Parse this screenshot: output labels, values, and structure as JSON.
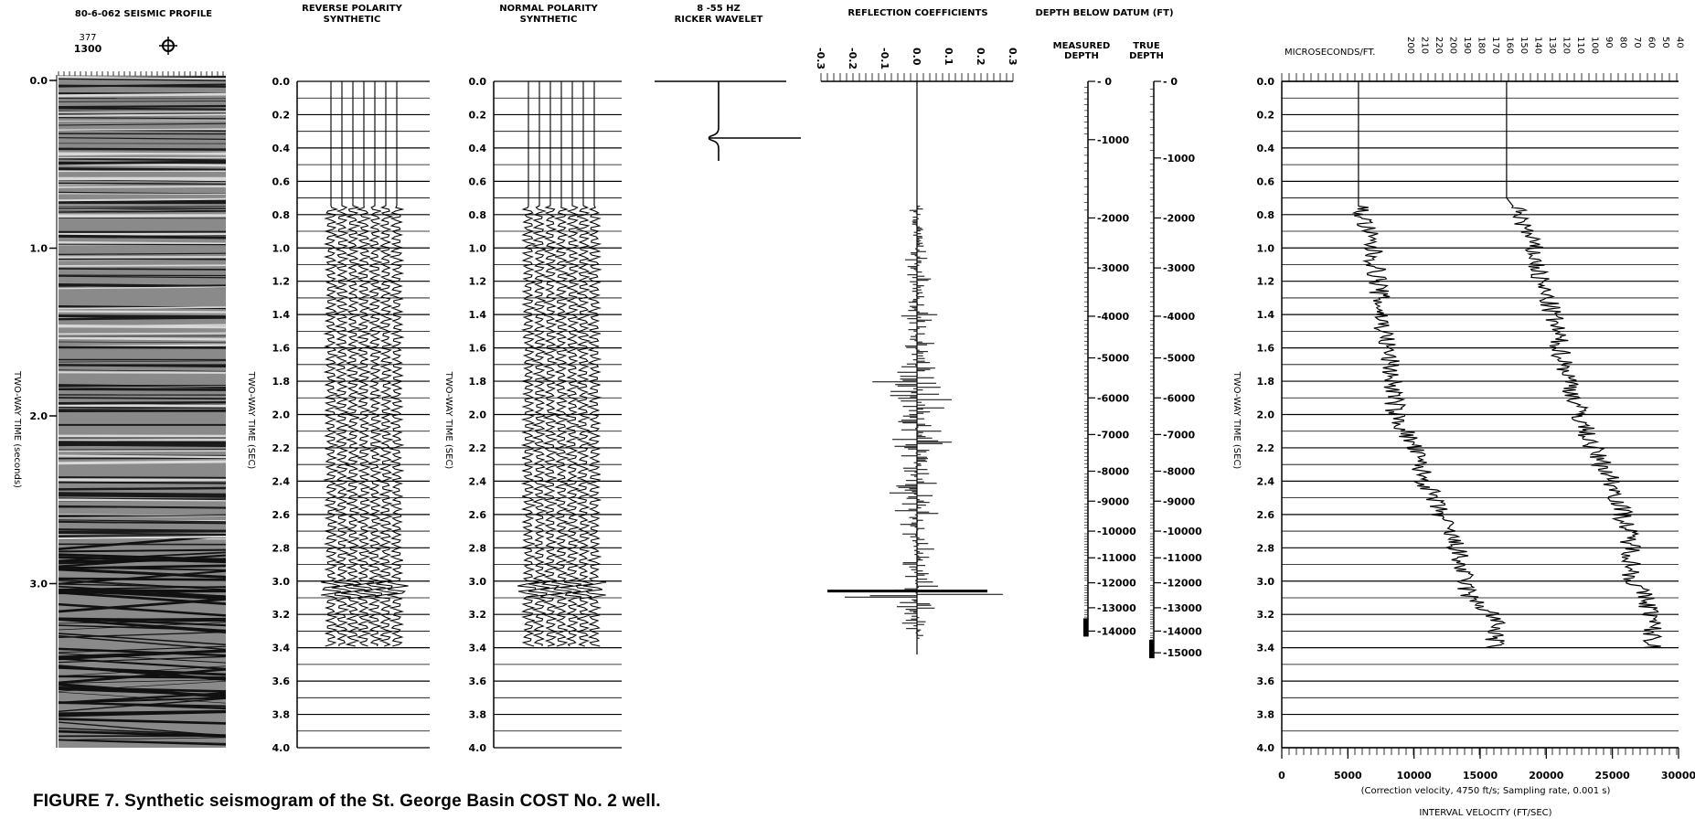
{
  "caption": "FIGURE 7. Synthetic seismogram of the St. George Basin COST No. 2 well.",
  "chart_data": [
    {
      "type": "seismic-profile",
      "title": "80-6-062 SEISMIC PROFILE",
      "shotpoint_small": "377",
      "shotpoint": "1300",
      "ylabel": "TWO-WAY TIME (seconds)",
      "ylim": [
        0,
        3.9
      ],
      "yticks": [
        "0.0",
        "1.0",
        "2.0",
        "3.0"
      ],
      "ytick_values": [
        0,
        1,
        2,
        3
      ]
    },
    {
      "type": "synthetic-trace",
      "title_line1": "REVERSE POLARITY",
      "title_line2": "SYNTHETIC",
      "ylabel": "TWO-WAY TIME (SEC)",
      "ylim": [
        0,
        4.0
      ],
      "trace_end": 3.4,
      "traces": 7,
      "yticks": [
        "0.0",
        "0.2",
        "0.4",
        "0.6",
        "0.8",
        "1.0",
        "1.2",
        "1.4",
        "1.6",
        "1.8",
        "2.0",
        "2.2",
        "2.4",
        "2.6",
        "2.8",
        "3.0",
        "3.2",
        "3.4",
        "3.6",
        "3.8",
        "4.0"
      ]
    },
    {
      "type": "synthetic-trace",
      "title_line1": "NORMAL POLARITY",
      "title_line2": "SYNTHETIC",
      "ylabel": "TWO-WAY TIME (SEC)",
      "ylim": [
        0,
        4.0
      ],
      "trace_end": 3.4,
      "traces": 7,
      "yticks": [
        "0.0",
        "0.2",
        "0.4",
        "0.6",
        "0.8",
        "1.0",
        "1.2",
        "1.4",
        "1.6",
        "1.8",
        "2.0",
        "2.2",
        "2.4",
        "2.6",
        "2.8",
        "3.0",
        "3.2",
        "3.4",
        "3.6",
        "3.8",
        "4.0"
      ]
    },
    {
      "type": "wavelet",
      "title_line1": "8 -55 HZ",
      "title_line2": "RICKER WAVELET"
    },
    {
      "type": "line",
      "title": "REFLECTION COEFFICIENTS",
      "xticks": [
        "-0.3",
        "-0.2",
        "-0.1",
        "0.0",
        "0.1",
        "0.2",
        "0.3"
      ],
      "xtick_values": [
        -0.3,
        -0.2,
        -0.1,
        0.0,
        0.1,
        0.2,
        0.3
      ],
      "xlim": [
        -0.3,
        0.3
      ],
      "ylim": [
        0,
        4.0
      ],
      "series": [
        {
          "t": [
            0.75,
            1.0,
            1.4,
            1.6,
            1.8,
            2.0,
            2.1,
            2.2,
            2.4,
            2.6,
            2.8,
            3.0,
            3.05,
            3.1,
            3.2,
            3.3
          ],
          "amplitude": [
            0.02,
            0.03,
            0.05,
            0.05,
            0.1,
            0.07,
            0.09,
            0.05,
            0.07,
            0.05,
            0.04,
            0.05,
            0.28,
            0.07,
            0.04,
            0.03
          ]
        }
      ]
    },
    {
      "type": "depth-scale",
      "title": "DEPTH BELOW DATUM (FT)",
      "measured_label_1": "MEASURED",
      "measured_label_2": "DEPTH",
      "true_label_1": "TRUE",
      "true_label_2": "DEPTH",
      "measured_depths": [
        "0",
        "1000",
        "2000",
        "3000",
        "4000",
        "5000",
        "6000",
        "7000",
        "8000",
        "9000",
        "10000",
        "11000",
        "12000",
        "13000",
        "14000"
      ],
      "measured_times": [
        0,
        0.35,
        0.82,
        1.12,
        1.41,
        1.66,
        1.9,
        2.12,
        2.34,
        2.52,
        2.7,
        2.86,
        3.01,
        3.16,
        3.3
      ],
      "true_depths": [
        "0",
        "1000",
        "2000",
        "3000",
        "4000",
        "5000",
        "6000",
        "7000",
        "8000",
        "9000",
        "10000",
        "11000",
        "12000",
        "13000",
        "14000",
        "15000"
      ],
      "true_times": [
        0,
        0.46,
        0.82,
        1.12,
        1.41,
        1.66,
        1.9,
        2.12,
        2.34,
        2.52,
        2.7,
        2.86,
        3.01,
        3.16,
        3.3,
        3.43
      ]
    },
    {
      "type": "line",
      "top_label": "MICROSECONDS/FT.",
      "top_ticks": [
        "200",
        "210",
        "220",
        "200",
        "190",
        "180",
        "170",
        "160",
        "150",
        "140",
        "130",
        "120",
        "110",
        "100",
        "90",
        "80",
        "70",
        "60",
        "50",
        "40"
      ],
      "ylabel": "TWO-WAY TIME (SEC)",
      "xlabel": "INTERVAL VELOCITY (FT/SEC)",
      "note": "(Correction velocity, 4750 ft/s; Sampling rate, 0.001 s)",
      "xticks": [
        "0",
        "5000",
        "10000",
        "15000",
        "20000",
        "25000",
        "30000"
      ],
      "xtick_values": [
        0,
        5000,
        10000,
        15000,
        20000,
        25000,
        30000
      ],
      "xlim": [
        0,
        30000
      ],
      "ylim": [
        0,
        4.0
      ],
      "yticks": [
        "0.0",
        "0.2",
        "0.4",
        "0.6",
        "0.8",
        "1.0",
        "1.2",
        "1.4",
        "1.6",
        "1.8",
        "2.0",
        "2.2",
        "2.4",
        "2.6",
        "2.8",
        "3.0",
        "3.2",
        "3.4",
        "3.6",
        "3.8",
        "4.0"
      ],
      "series": [
        {
          "t": [
            0,
            0.75,
            0.8,
            1.0,
            1.2,
            1.4,
            1.6,
            1.8,
            2.0,
            2.2,
            2.4,
            2.6,
            2.8,
            3.0,
            3.1,
            3.2,
            3.3,
            3.4
          ],
          "velocity": [
            5800,
            5800,
            6100,
            6800,
            7300,
            7500,
            8000,
            8400,
            8600,
            10000,
            10800,
            12000,
            13200,
            13800,
            14200,
            16000,
            16200,
            16000
          ]
        },
        {
          "t": [
            0,
            0.7,
            0.8,
            1.0,
            1.2,
            1.4,
            1.6,
            1.8,
            2.0,
            2.2,
            2.4,
            2.6,
            2.8,
            3.0,
            3.1,
            3.2,
            3.3,
            3.4
          ],
          "velocity": [
            17000,
            17000,
            18000,
            19000,
            19500,
            20500,
            21000,
            21800,
            22500,
            23500,
            25000,
            25800,
            26500,
            26500,
            27500,
            28000,
            28000,
            28000
          ]
        }
      ]
    }
  ]
}
